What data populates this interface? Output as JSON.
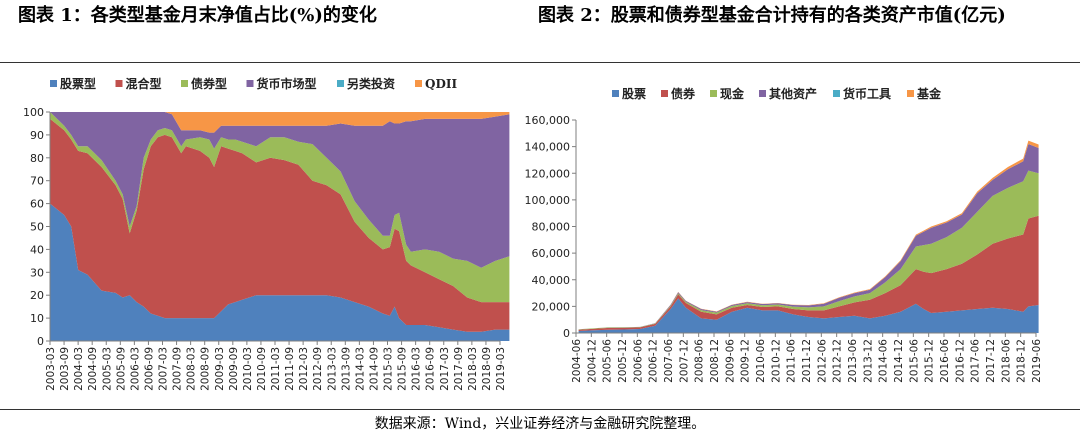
{
  "chart1_title": "图表 1：各类型基金月末净值占比(%)的变化",
  "chart2_title": "图表 2：股票和债券型基金合计持有的各类资产市值(亿元)",
  "source": "数据来源：Wind，兴业证券经济与金融研究院整理。",
  "chart_data": [
    {
      "type": "area",
      "title": "各类型基金月末净值占比(%)的变化",
      "stacked": true,
      "legend_position": "top",
      "ylim": [
        0,
        100
      ],
      "yticks": [
        0,
        10,
        20,
        30,
        40,
        50,
        60,
        70,
        80,
        90,
        100
      ],
      "x_tick_labels": [
        "2003-03",
        "2003-09",
        "2004-03",
        "2004-09",
        "2005-03",
        "2005-09",
        "2006-03",
        "2006-09",
        "2007-03",
        "2007-09",
        "2008-03",
        "2008-09",
        "2009-03",
        "2009-09",
        "2010-03",
        "2010-09",
        "2011-03",
        "2011-09",
        "2012-03",
        "2012-09",
        "2013-03",
        "2013-09",
        "2014-03",
        "2014-09",
        "2015-03",
        "2015-09",
        "2016-03",
        "2016-09",
        "2017-03",
        "2017-09",
        "2018-03",
        "2018-09",
        "2019-03"
      ],
      "x": [
        2003.17,
        2003.67,
        2003.92,
        2004.17,
        2004.5,
        2005.0,
        2005.5,
        2005.75,
        2006.0,
        2006.25,
        2006.5,
        2006.75,
        2007.0,
        2007.25,
        2007.5,
        2007.83,
        2008.0,
        2008.5,
        2008.83,
        2009.0,
        2009.25,
        2009.5,
        2009.75,
        2010.0,
        2010.5,
        2011.0,
        2011.5,
        2012.0,
        2012.5,
        2013.0,
        2013.5,
        2014.0,
        2014.5,
        2015.0,
        2015.25,
        2015.42,
        2015.58,
        2015.83,
        2016.0,
        2016.5,
        2017.0,
        2017.5,
        2018.0,
        2018.5,
        2019.0,
        2019.5
      ],
      "series": [
        {
          "name": "股票型",
          "color": "#4f81bd",
          "values": [
            60,
            55,
            50,
            31,
            29,
            22,
            21,
            19,
            20,
            17,
            15,
            12,
            11,
            10,
            10,
            10,
            10,
            10,
            10,
            10,
            13,
            16,
            17,
            18,
            20,
            20,
            20,
            20,
            20,
            20,
            19,
            17,
            15,
            12,
            11,
            15,
            10,
            7,
            7,
            7,
            6,
            5,
            4,
            4,
            5,
            5
          ]
        },
        {
          "name": "混合型",
          "color": "#c0504d",
          "values": [
            37,
            37,
            38,
            52,
            53,
            54,
            47,
            43,
            27,
            40,
            60,
            73,
            78,
            80,
            79,
            72,
            75,
            73,
            70,
            66,
            72,
            68,
            66,
            64,
            58,
            60,
            59,
            57,
            50,
            48,
            45,
            35,
            30,
            28,
            30,
            34,
            38,
            28,
            26,
            23,
            21,
            19,
            15,
            13,
            12,
            12
          ]
        },
        {
          "name": "债券型",
          "color": "#9bbb59",
          "values": [
            3,
            2,
            2,
            2,
            3,
            3,
            2,
            2,
            3,
            2,
            5,
            3,
            3,
            3,
            3,
            3,
            3,
            6,
            8,
            8,
            4,
            4,
            5,
            5,
            7,
            9,
            10,
            10,
            16,
            12,
            10,
            9,
            8,
            6,
            5,
            6,
            8,
            7,
            6,
            10,
            12,
            12,
            16,
            15,
            18,
            20
          ]
        },
        {
          "name": "货币市场型",
          "color": "#8064a2",
          "values": [
            0,
            6,
            10,
            15,
            15,
            21,
            30,
            36,
            50,
            41,
            20,
            12,
            8,
            7,
            7,
            7,
            4,
            3,
            3,
            7,
            5,
            6,
            6,
            7,
            9,
            5,
            5,
            7,
            8,
            14,
            21,
            33,
            41,
            48,
            50,
            40,
            39,
            54,
            57,
            57,
            58,
            61,
            62,
            65,
            63,
            62
          ]
        },
        {
          "name": "另类投资",
          "color": "#4bacc6",
          "values": [
            0,
            0,
            0,
            0,
            0,
            0,
            0,
            0,
            0,
            0,
            0,
            0,
            0,
            0,
            0,
            0,
            0,
            0,
            0,
            0,
            0,
            0,
            0,
            0,
            0,
            0,
            0,
            0,
            0,
            0,
            0,
            0,
            0,
            0,
            0,
            0,
            0,
            0,
            0,
            0,
            0,
            0,
            0,
            0,
            0,
            0
          ]
        },
        {
          "name": "QDII",
          "color": "#f79646",
          "values": [
            0,
            0,
            0,
            0,
            0,
            0,
            0,
            0,
            0,
            0,
            0,
            0,
            0,
            0,
            1,
            8,
            8,
            8,
            9,
            9,
            6,
            6,
            6,
            6,
            6,
            6,
            6,
            6,
            6,
            6,
            5,
            6,
            6,
            6,
            4,
            5,
            5,
            4,
            4,
            3,
            3,
            3,
            3,
            3,
            2,
            1
          ]
        }
      ]
    },
    {
      "type": "area",
      "title": "股票和债券型基金合计持有的各类资产市值(亿元)",
      "stacked": true,
      "legend_position": "top",
      "ylim": [
        0,
        160000
      ],
      "yticks": [
        0,
        20000,
        40000,
        60000,
        80000,
        100000,
        120000,
        140000,
        160000
      ],
      "ytick_labels": [
        "0",
        "20,000",
        "40,000",
        "60,000",
        "80,000",
        "100,000",
        "120,000",
        "140,000",
        "160,000"
      ],
      "x_tick_labels": [
        "2004-06",
        "2004-12",
        "2005-06",
        "2005-12",
        "2006-06",
        "2006-12",
        "2007-06",
        "2007-12",
        "2008-06",
        "2008-12",
        "2009-06",
        "2009-12",
        "2010-06",
        "2010-12",
        "2011-06",
        "2011-12",
        "2012-06",
        "2012-12",
        "2013-06",
        "2013-12",
        "2014-06",
        "2014-12",
        "2015-06",
        "2015-12",
        "2016-06",
        "2016-12",
        "2017-06",
        "2017-12",
        "2018-06",
        "2018-12",
        "2019-06"
      ],
      "x": [
        2004.5,
        2005.0,
        2005.5,
        2006.0,
        2006.5,
        2007.0,
        2007.5,
        2007.75,
        2008.0,
        2008.5,
        2009.0,
        2009.5,
        2010.0,
        2010.5,
        2011.0,
        2011.5,
        2012.0,
        2012.5,
        2013.0,
        2013.5,
        2014.0,
        2014.5,
        2015.0,
        2015.5,
        2015.75,
        2016.0,
        2016.5,
        2017.0,
        2017.5,
        2018.0,
        2018.5,
        2019.0,
        2019.17,
        2019.5
      ],
      "series": [
        {
          "name": "股票",
          "color": "#4f81bd",
          "values": [
            1500,
            2000,
            2400,
            2600,
            3000,
            5500,
            18000,
            26000,
            19000,
            11000,
            10000,
            16000,
            19000,
            17000,
            17000,
            14000,
            12000,
            11000,
            12000,
            13000,
            11000,
            13000,
            16000,
            22000,
            18000,
            15000,
            16000,
            17000,
            18000,
            19000,
            18000,
            16000,
            20000,
            21000
          ]
        },
        {
          "name": "债券",
          "color": "#c0504d",
          "values": [
            1000,
            1200,
            1400,
            1300,
            1200,
            1300,
            2000,
            3000,
            3500,
            5000,
            4000,
            3000,
            2000,
            2500,
            3000,
            4000,
            5000,
            6000,
            8000,
            10000,
            14000,
            17000,
            20000,
            26000,
            28000,
            30000,
            32000,
            35000,
            41000,
            48000,
            53000,
            58000,
            66000,
            67000
          ]
        },
        {
          "name": "现金",
          "color": "#9bbb59",
          "values": [
            200,
            300,
            400,
            400,
            300,
            400,
            600,
            800,
            900,
            1200,
            1300,
            1300,
            1300,
            1300,
            1400,
            1800,
            2200,
            3000,
            4000,
            4500,
            5000,
            8000,
            12000,
            17000,
            20000,
            22000,
            24000,
            27000,
            32000,
            36000,
            38000,
            40000,
            36000,
            32000
          ]
        },
        {
          "name": "其他资产",
          "color": "#8064a2",
          "values": [
            100,
            100,
            100,
            100,
            100,
            200,
            600,
            900,
            700,
            800,
            700,
            800,
            900,
            1000,
            900,
            1200,
            1500,
            2000,
            2500,
            2500,
            2500,
            4000,
            6000,
            8000,
            10000,
            12000,
            11000,
            10000,
            14000,
            12000,
            14000,
            15000,
            20000,
            19000
          ]
        },
        {
          "name": "货币工具",
          "color": "#4bacc6",
          "values": [
            0,
            0,
            0,
            0,
            0,
            0,
            0,
            0,
            0,
            0,
            0,
            0,
            0,
            0,
            0,
            0,
            0,
            0,
            0,
            0,
            0,
            0,
            0,
            0,
            0,
            0,
            0,
            0,
            0,
            0,
            0,
            0,
            0,
            0
          ]
        },
        {
          "name": "基金",
          "color": "#f79646",
          "values": [
            0,
            0,
            0,
            0,
            0,
            0,
            100,
            200,
            200,
            200,
            200,
            200,
            200,
            200,
            200,
            200,
            300,
            300,
            400,
            400,
            500,
            500,
            700,
            900,
            900,
            1000,
            1000,
            1100,
            1200,
            1500,
            1700,
            2000,
            2500,
            2600
          ]
        }
      ]
    }
  ]
}
